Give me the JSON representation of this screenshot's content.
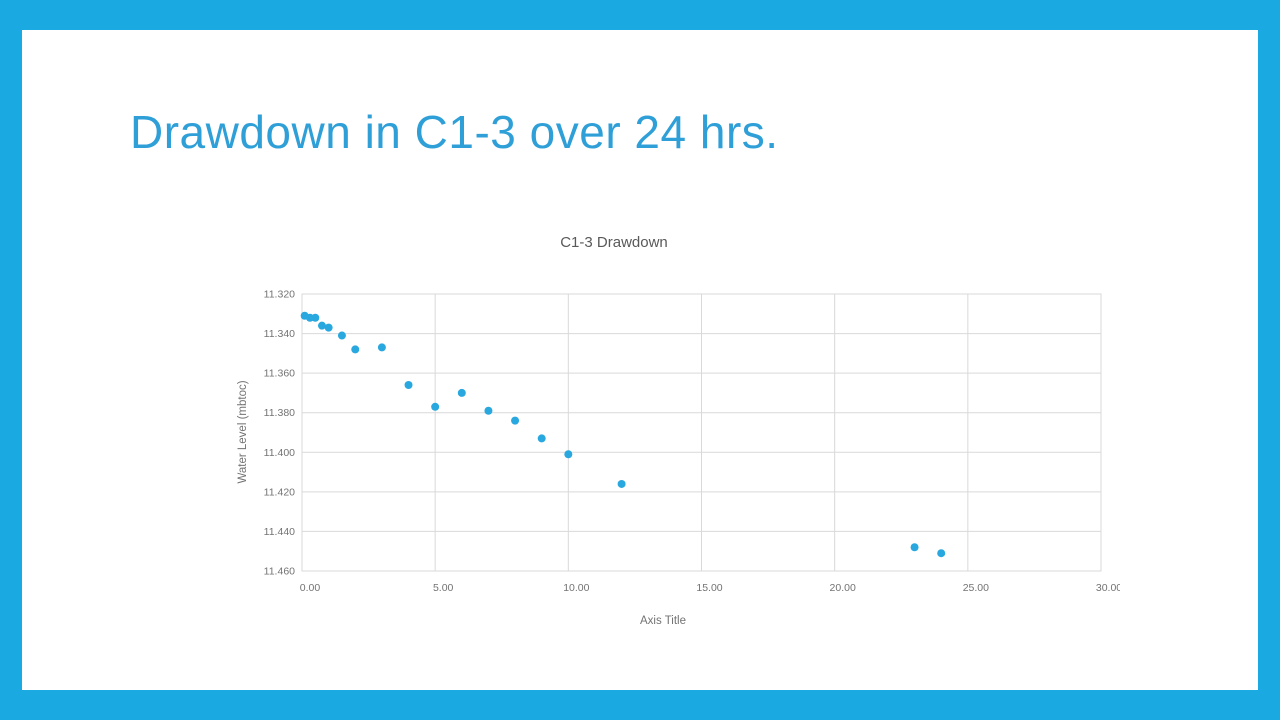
{
  "slide": {
    "title": "Drawdown in C1-3 over 24 hrs.",
    "border_color": "#1BA9E1",
    "title_color": "#2F9FD8"
  },
  "chart_data": {
    "type": "scatter",
    "title": "C1-3 Drawdown",
    "xlabel": "Axis Title",
    "ylabel": "Water Level (mbtoc)",
    "xlim": [
      0,
      30
    ],
    "ylim": [
      11.32,
      11.46
    ],
    "y_axis_inverted": true,
    "grid": true,
    "legend": "none",
    "marker_color": "#29A8DF",
    "grid_color": "#D9D9D9",
    "x_ticks": [
      "0.00",
      "5.00",
      "10.00",
      "15.00",
      "20.00",
      "25.00",
      "30.00"
    ],
    "y_ticks": [
      "11.320",
      "11.340",
      "11.360",
      "11.380",
      "11.400",
      "11.420",
      "11.440",
      "11.460"
    ],
    "points": [
      [
        0.1,
        11.331
      ],
      [
        0.3,
        11.332
      ],
      [
        0.5,
        11.332
      ],
      [
        0.75,
        11.336
      ],
      [
        1.0,
        11.337
      ],
      [
        1.5,
        11.341
      ],
      [
        2.0,
        11.348
      ],
      [
        3.0,
        11.347
      ],
      [
        4.0,
        11.366
      ],
      [
        5.0,
        11.377
      ],
      [
        6.0,
        11.37
      ],
      [
        7.0,
        11.379
      ],
      [
        8.0,
        11.384
      ],
      [
        9.0,
        11.393
      ],
      [
        10.0,
        11.401
      ],
      [
        12.0,
        11.416
      ],
      [
        23.0,
        11.448
      ],
      [
        24.0,
        11.451
      ]
    ]
  }
}
